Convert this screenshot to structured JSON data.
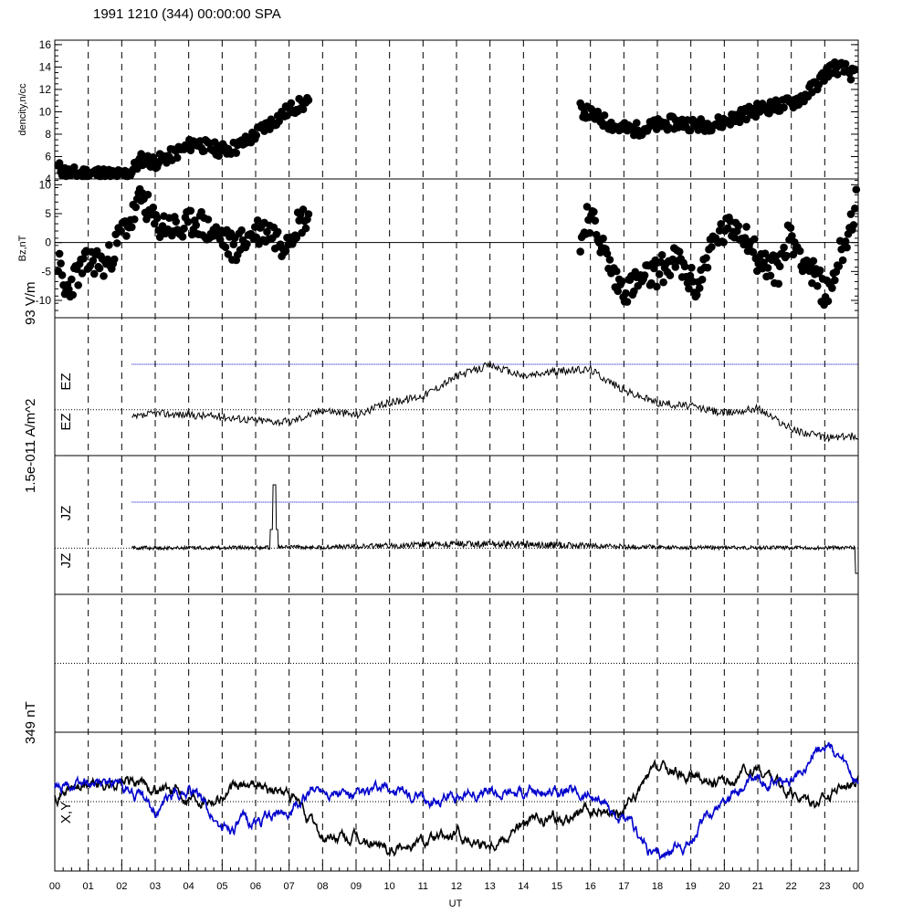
{
  "title": "1991 1210 (344) 00:00:00 SPA",
  "xaxis": {
    "label": "UT",
    "ticks": [
      "00",
      "01",
      "02",
      "03",
      "04",
      "05",
      "06",
      "07",
      "08",
      "09",
      "10",
      "11",
      "12",
      "13",
      "14",
      "15",
      "16",
      "17",
      "18",
      "19",
      "20",
      "21",
      "22",
      "23",
      "00"
    ],
    "range_hours": [
      0,
      24
    ]
  },
  "side_labels": {
    "scale_93": "93 V/m",
    "scale_15e": "1.5e-011 A/m^2",
    "scale_349": "349 nT"
  },
  "chart_data": [
    {
      "type": "scatter",
      "ylabel": "dencity,n/cc",
      "ylim": [
        4,
        16.4
      ],
      "yticks": [
        "4",
        "6",
        "8",
        "10",
        "12",
        "14",
        "16"
      ],
      "grid": "vertical dashed hourly",
      "segments": [
        {
          "x": [
            0.1,
            0.4,
            0.8,
            1.2,
            1.6,
            2.0,
            2.3,
            2.6,
            3.0,
            3.4,
            3.8,
            4.2,
            4.6,
            5.0,
            5.4,
            5.8,
            6.2,
            6.6,
            7.0,
            7.3,
            7.6
          ],
          "y": [
            5.0,
            4.5,
            4.5,
            4.5,
            4.4,
            4.3,
            4.7,
            5.8,
            5.5,
            6.0,
            6.6,
            7.3,
            6.8,
            6.6,
            6.8,
            7.5,
            8.5,
            9.3,
            10.2,
            10.6,
            10.8
          ]
        },
        {
          "x": [
            15.7,
            16.0,
            16.4,
            16.8,
            17.2,
            17.6,
            18.0,
            18.4,
            18.8,
            19.2,
            19.6,
            20.0,
            20.4,
            20.8,
            21.2,
            21.6,
            22.0,
            22.4,
            22.8,
            23.2,
            23.6,
            23.9
          ],
          "y": [
            10.2,
            9.8,
            9.2,
            8.6,
            8.4,
            8.5,
            8.8,
            9.0,
            9.0,
            8.8,
            8.9,
            9.1,
            9.6,
            10.0,
            10.4,
            10.5,
            10.8,
            11.4,
            12.6,
            14.0,
            13.8,
            13.2
          ]
        }
      ]
    },
    {
      "type": "scatter",
      "ylabel": "Bz,nT",
      "ylim": [
        -13,
        11
      ],
      "yticks": [
        "-10",
        "-5",
        "0",
        "5",
        "10"
      ],
      "zero_line": true,
      "segments": [
        {
          "x": [
            0.1,
            0.3,
            0.6,
            0.9,
            1.2,
            1.5,
            1.8,
            2.0,
            2.3,
            2.6,
            3.0,
            3.4,
            3.8,
            4.2,
            4.6,
            5.0,
            5.3,
            5.6,
            6.0,
            6.4,
            6.8,
            7.2,
            7.6
          ],
          "y": [
            -3,
            -9,
            -6,
            -4,
            -3,
            -4,
            -1,
            2,
            4,
            8,
            3,
            3,
            2,
            4,
            2,
            1,
            -1,
            0,
            2,
            2,
            0,
            3,
            5
          ]
        },
        {
          "x": [
            15.7,
            15.9,
            16.2,
            16.5,
            16.8,
            17.1,
            17.4,
            17.7,
            18.0,
            18.3,
            18.6,
            18.9,
            19.2,
            19.5,
            19.8,
            20.1,
            20.4,
            20.7,
            21.0,
            21.3,
            21.6,
            21.9,
            22.2,
            22.5,
            22.8,
            23.1,
            23.4,
            23.7,
            23.95
          ],
          "y": [
            -1,
            5,
            2,
            -3,
            -7,
            -8,
            -7,
            -6,
            -5,
            -4,
            -3,
            -6,
            -8,
            -2,
            1,
            2,
            3,
            1,
            -3,
            -4,
            -5,
            1,
            -1,
            -4,
            -7,
            -9,
            -3,
            2,
            7
          ]
        }
      ]
    },
    {
      "type": "line",
      "ylabels": [
        "EZ",
        "EZ"
      ],
      "x_start": 2.3,
      "x_end": 24,
      "y_knots_x": [
        2.3,
        3,
        4,
        5,
        6,
        7,
        8,
        9,
        10,
        11,
        12,
        13,
        14,
        15,
        16,
        17,
        18,
        19,
        20,
        21,
        22,
        23,
        24
      ],
      "y_knots": [
        0.34,
        0.4,
        0.38,
        0.36,
        0.32,
        0.3,
        0.44,
        0.38,
        0.52,
        0.6,
        0.82,
        0.95,
        0.82,
        0.88,
        0.9,
        0.66,
        0.52,
        0.48,
        0.4,
        0.46,
        0.22,
        0.12,
        0.14
      ],
      "reference_line_blue": true
    },
    {
      "type": "line",
      "ylabels": [
        "JZ",
        "JZ"
      ],
      "x_start": 2.3,
      "x_end": 24,
      "baseline": 0.0,
      "spike": {
        "x": 6.55,
        "value": 1.35
      },
      "reference_line_blue": true
    },
    {
      "type": "empty",
      "ylabels": []
    },
    {
      "type": "line",
      "ylabel": "X,Y",
      "series": [
        {
          "color": "#000000",
          "x": [
            0,
            1,
            2,
            3,
            4,
            5,
            6,
            7,
            8,
            9,
            10,
            11,
            12,
            13,
            14,
            15,
            16,
            17,
            18,
            19,
            20,
            21,
            22,
            23,
            24
          ],
          "y": [
            0.15,
            0.25,
            0.3,
            0.22,
            0.1,
            0.1,
            0.3,
            0.1,
            -0.55,
            -0.6,
            -0.7,
            -0.6,
            -0.55,
            -0.6,
            -0.35,
            -0.25,
            -0.2,
            -0.15,
            0.5,
            0.4,
            0.25,
            0.5,
            0.1,
            0.05,
            0.45
          ]
        },
        {
          "color": "#0000cc",
          "x": [
            0,
            1,
            2,
            3,
            4,
            5,
            6,
            7,
            8,
            9,
            10,
            11,
            12,
            13,
            14,
            15,
            16,
            17,
            18,
            19,
            20,
            21,
            22,
            23,
            24
          ],
          "y": [
            0.2,
            0.3,
            0.25,
            -0.15,
            0.25,
            -0.4,
            -0.3,
            -0.15,
            0.25,
            0.05,
            0.2,
            0.0,
            0.1,
            0.15,
            0.15,
            0.15,
            0.1,
            -0.3,
            -0.85,
            -0.6,
            0.1,
            0.3,
            0.3,
            0.95,
            0.25
          ]
        }
      ]
    }
  ],
  "colors": {
    "black": "#000000",
    "blue": "#0000cc",
    "background": "#ffffff"
  }
}
